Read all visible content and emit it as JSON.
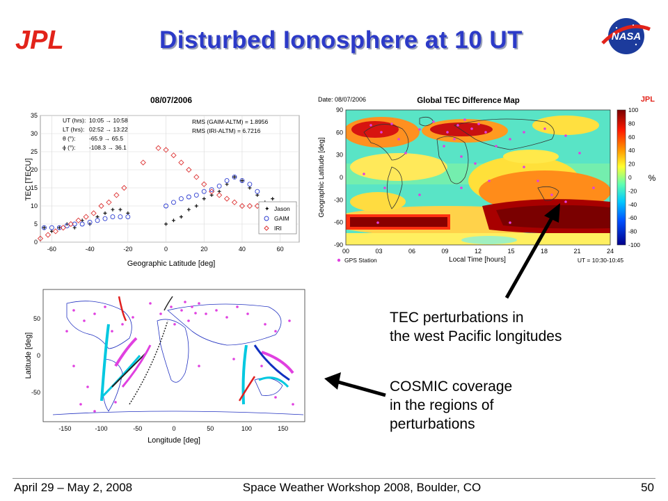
{
  "slide": {
    "title": "Disturbed Ionosphere at 10 UT",
    "logo_left": "JPL",
    "logo_right": "NASA",
    "footer_left": "April 29 – May 2, 2008",
    "footer_center": "Space Weather Workshop 2008, Boulder, CO",
    "page_number": "50",
    "colors": {
      "title": "#2c3ac8",
      "jpl_red": "#e2231a",
      "nasa_blue": "#1c3b9c",
      "arrow": "#000000"
    }
  },
  "annotations": {
    "tec_line1": "TEC perturbations in",
    "tec_line2": "the west Pacific longitudes",
    "cosmic_line1": "COSMIC coverage",
    "cosmic_line2": "in the regions of",
    "cosmic_line3": "perturbations"
  },
  "chart1": {
    "title": "08/07/2006",
    "stats": {
      "ut_label": "UT (hrs):",
      "ut_range": "10:05 → 10:58",
      "lt_label": "LT (hrs):",
      "lt_range": "02:52 → 13:22",
      "theta_label": "θ (°):",
      "theta_range": "-65.9 → 65.5",
      "phi_label": "ϕ (°):",
      "phi_range": "-108.3 → 36.1",
      "rms1": "RMS (GAIM-ALTM) = 1.8956",
      "rms2": "RMS (IRI-ALTM) = 6.7216"
    },
    "xlabel": "Geographic Latitude [deg]",
    "ylabel": "TEC [TECU]",
    "xticks": [
      "-60",
      "-40",
      "-20",
      "0",
      "20",
      "40",
      "60"
    ],
    "yticks": [
      "0",
      "5",
      "10",
      "15",
      "20",
      "25",
      "30",
      "35"
    ],
    "legend": [
      "Jason",
      "GAIM",
      "IRI"
    ]
  },
  "chart2": {
    "date": "Date: 08/07/2006",
    "title": "Global TEC Difference Map",
    "brand": "JPL",
    "ylabel": "Geographic Latitude [deg]",
    "xlabel": "Local Time [hours]",
    "xticks": [
      "00",
      "03",
      "06",
      "09",
      "12",
      "15",
      "18",
      "21",
      "24"
    ],
    "yticks": [
      "90",
      "60",
      "30",
      "0",
      "-30",
      "-60",
      "-90"
    ],
    "cbar_ticks": [
      "100",
      "80",
      "60",
      "40",
      "20",
      "0",
      "-20",
      "-40",
      "-60",
      "-80",
      "-100"
    ],
    "cbar_unit": "%",
    "legend": "GPS Station",
    "ut": "UT = 10:30-10:45"
  },
  "chart3": {
    "xlabel": "Longitude [deg]",
    "ylabel": "Latitude [deg]",
    "xticks": [
      "-150",
      "-100",
      "-50",
      "0",
      "50",
      "100",
      "150"
    ],
    "yticks": [
      "50",
      "0",
      "-50"
    ]
  },
  "chart_data": [
    {
      "type": "scatter",
      "title": "08/07/2006",
      "xlabel": "Geographic Latitude [deg]",
      "ylabel": "TEC [TECU]",
      "xlim": [
        -66,
        70
      ],
      "ylim": [
        0,
        35
      ],
      "legend_position": "bottom-right",
      "series": [
        {
          "name": "Jason",
          "x": [
            -64,
            -60,
            -56,
            -52,
            -48,
            -44,
            -40,
            -36,
            -32,
            -28,
            -24,
            -20,
            0,
            4,
            8,
            12,
            16,
            20,
            24,
            28,
            32,
            36,
            40,
            44,
            48,
            52,
            56,
            60
          ],
          "y": [
            4,
            3,
            4,
            5,
            4,
            6,
            5,
            7,
            8,
            9,
            9,
            8,
            5,
            6,
            7,
            9,
            10,
            12,
            13,
            14,
            16,
            18,
            17,
            15,
            13,
            11,
            12,
            10
          ]
        },
        {
          "name": "GAIM",
          "x": [
            -64,
            -60,
            -56,
            -52,
            -48,
            -44,
            -40,
            -36,
            -32,
            -28,
            -24,
            -20,
            0,
            4,
            8,
            12,
            16,
            20,
            24,
            28,
            32,
            36,
            40,
            44,
            48
          ],
          "y": [
            4,
            4,
            4,
            4.5,
            5,
            5,
            5.5,
            6,
            6.5,
            7,
            7,
            7,
            10,
            11,
            12,
            12.5,
            13,
            14,
            14.5,
            15.5,
            17,
            18,
            17,
            16,
            14
          ]
        },
        {
          "name": "IRI",
          "x": [
            -66,
            -62,
            -58,
            -54,
            -50,
            -46,
            -42,
            -38,
            -34,
            -30,
            -26,
            -22,
            -12,
            -4,
            0,
            4,
            8,
            12,
            16,
            20,
            24,
            28,
            32,
            36,
            40,
            44,
            48
          ],
          "y": [
            1,
            2,
            3,
            4,
            5,
            6,
            7,
            8,
            10,
            11,
            13,
            15,
            22,
            26,
            25.5,
            24,
            22,
            20,
            18,
            16,
            14,
            13,
            12,
            11,
            10,
            10,
            10
          ]
        }
      ]
    },
    {
      "type": "heatmap",
      "title": "Global TEC Difference Map",
      "xlabel": "Local Time [hours]",
      "ylabel": "Geographic Latitude [deg]",
      "xlim": [
        0,
        24
      ],
      "ylim": [
        -90,
        90
      ],
      "colorbar": {
        "min": -100,
        "max": 100,
        "unit": "%"
      },
      "series": [
        {
          "name": "GPS Station"
        }
      ]
    },
    {
      "type": "scatter",
      "xlabel": "Longitude [deg]",
      "ylabel": "Latitude [deg]",
      "xlim": [
        -180,
        180
      ],
      "ylim": [
        -90,
        90
      ]
    }
  ]
}
